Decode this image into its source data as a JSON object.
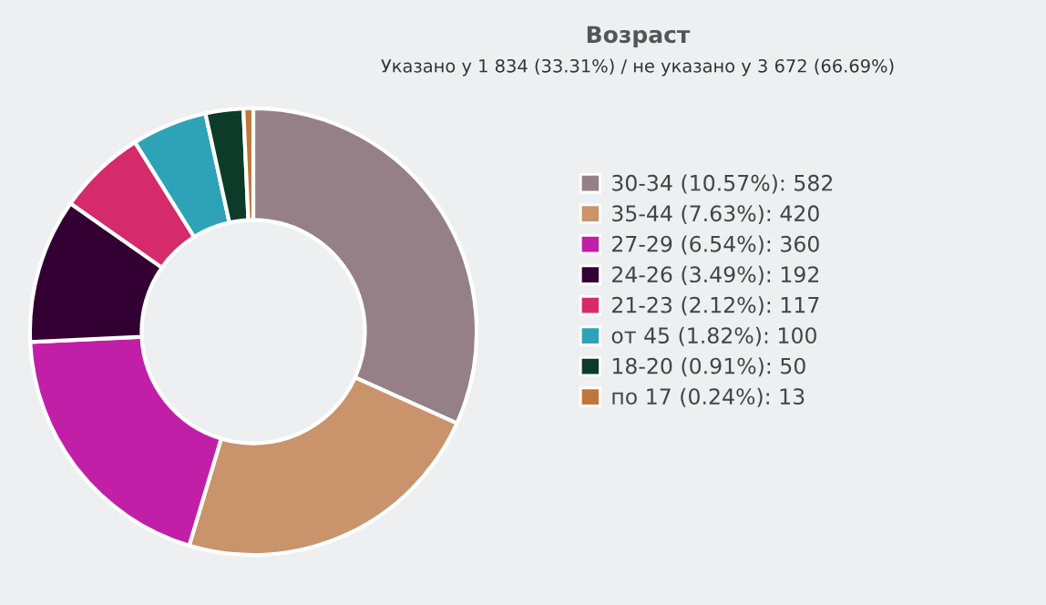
{
  "chart_data": {
    "type": "donut",
    "title": "Возраст",
    "subtitle": "Указано у 1 834 (33.31%) / не указано у 3 672 (66.69%)",
    "categories": [
      "30-34 (10.57%): 582",
      "35-44 (7.63%): 420",
      "27-29 (6.54%): 360",
      "24-26 (3.49%): 192",
      "21-23 (2.12%): 117",
      "от 45 (1.82%): 100",
      "18-20 (0.91%): 50",
      "по 17 (0.24%): 13"
    ],
    "values": [
      582,
      420,
      360,
      192,
      117,
      100,
      50,
      13
    ],
    "colors": [
      "#958087",
      "#c9936b",
      "#c21fa8",
      "#330033",
      "#d62b6a",
      "#2ea3b8",
      "#0d3b2a",
      "#c0763a"
    ],
    "legend": "right"
  }
}
